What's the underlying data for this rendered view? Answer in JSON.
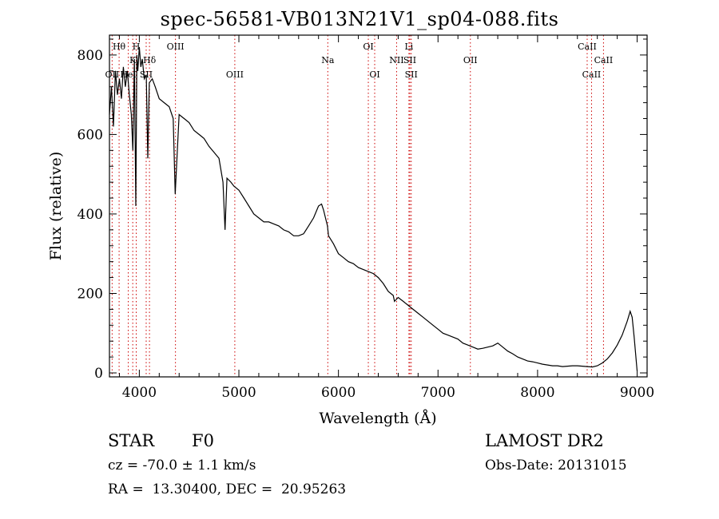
{
  "title": "spec-56581-VB013N21V1_sp04-088.fits",
  "chart_data": {
    "type": "line",
    "title": "spec-56581-VB013N21V1_sp04-088.fits",
    "xlabel": "Wavelength (Å)",
    "ylabel": "Flux (relative)",
    "xlim": [
      3700,
      9100
    ],
    "ylim": [
      -10,
      850
    ],
    "x_ticks": [
      4000,
      5000,
      6000,
      7000,
      8000,
      9000
    ],
    "y_ticks": [
      0,
      200,
      400,
      600,
      800
    ],
    "grid": false,
    "line_color": "#000000",
    "marker_color": "#cc0000",
    "series": [
      {
        "x": [
          3700,
          3720,
          3740,
          3760,
          3780,
          3800,
          3820,
          3840,
          3860,
          3880,
          3900,
          3920,
          3935,
          3950,
          3965,
          3975,
          3985,
          4000,
          4015,
          4030,
          4050,
          4070,
          4085,
          4100,
          4130,
          4160,
          4200,
          4250,
          4300,
          4340,
          4360,
          4400,
          4450,
          4500,
          4550,
          4600,
          4650,
          4700,
          4750,
          4800,
          4840,
          4861,
          4880,
          4920,
          4950,
          5000,
          5050,
          5100,
          5150,
          5200,
          5250,
          5300,
          5350,
          5400,
          5450,
          5500,
          5550,
          5600,
          5650,
          5700,
          5750,
          5800,
          5830,
          5850,
          5870,
          5890,
          5900,
          5950,
          6000,
          6050,
          6100,
          6150,
          6200,
          6250,
          6300,
          6350,
          6400,
          6450,
          6500,
          6550,
          6563,
          6600,
          6650,
          6700,
          6750,
          6800,
          6850,
          6900,
          6950,
          7000,
          7050,
          7100,
          7150,
          7200,
          7250,
          7300,
          7350,
          7400,
          7450,
          7500,
          7550,
          7600,
          7650,
          7700,
          7750,
          7800,
          7850,
          7900,
          7950,
          8000,
          8050,
          8100,
          8150,
          8200,
          8250,
          8300,
          8350,
          8400,
          8450,
          8500,
          8550,
          8600,
          8650,
          8700,
          8750,
          8800,
          8850,
          8900,
          8930,
          8950,
          8970,
          9000
        ],
        "y": [
          650,
          720,
          620,
          760,
          700,
          740,
          690,
          770,
          720,
          760,
          700,
          650,
          560,
          790,
          420,
          800,
          760,
          820,
          770,
          790,
          740,
          750,
          540,
          730,
          740,
          720,
          690,
          680,
          670,
          640,
          450,
          650,
          640,
          630,
          610,
          600,
          590,
          570,
          555,
          540,
          480,
          360,
          490,
          480,
          470,
          460,
          440,
          420,
          400,
          390,
          380,
          380,
          375,
          370,
          360,
          355,
          345,
          345,
          350,
          370,
          390,
          420,
          425,
          410,
          390,
          370,
          345,
          325,
          300,
          290,
          280,
          275,
          265,
          260,
          255,
          250,
          240,
          225,
          205,
          195,
          180,
          190,
          180,
          170,
          160,
          150,
          140,
          130,
          120,
          110,
          100,
          95,
          90,
          85,
          75,
          70,
          65,
          60,
          62,
          65,
          68,
          75,
          65,
          55,
          48,
          40,
          35,
          30,
          28,
          25,
          22,
          20,
          18,
          18,
          16,
          17,
          18,
          18,
          17,
          16,
          15,
          18,
          25,
          35,
          50,
          70,
          95,
          130,
          155,
          140,
          90,
          5
        ]
      }
    ],
    "line_markers": [
      {
        "label": "Hθ",
        "x": 3797,
        "row": 0
      },
      {
        "label": "OII",
        "x": 3727,
        "row": 2
      },
      {
        "label": "H",
        "x": 3969,
        "row": 0
      },
      {
        "label": "K",
        "x": 3934,
        "row": 1
      },
      {
        "label": "HeI",
        "x": 3889,
        "row": 2
      },
      {
        "label": "SII",
        "x": 4069,
        "row": 2
      },
      {
        "label": "Hδ",
        "x": 4102,
        "row": 1
      },
      {
        "label": "OIII",
        "x": 4363,
        "row": 0
      },
      {
        "label": "OIII",
        "x": 4959,
        "row": 2
      },
      {
        "label": "Na",
        "x": 5893,
        "row": 1
      },
      {
        "label": "OI",
        "x": 6300,
        "row": 0
      },
      {
        "label": "OI",
        "x": 6364,
        "row": 2
      },
      {
        "label": "Li",
        "x": 6708,
        "row": 0
      },
      {
        "label": "NII",
        "x": 6584,
        "row": 1
      },
      {
        "label": "SII",
        "x": 6717,
        "row": 1
      },
      {
        "label": "SII",
        "x": 6731,
        "row": 2
      },
      {
        "label": "OII",
        "x": 7325,
        "row": 1
      },
      {
        "label": "CaII",
        "x": 8498,
        "row": 0
      },
      {
        "label": "CaII",
        "x": 8662,
        "row": 1
      },
      {
        "label": "CaII",
        "x": 8542,
        "row": 2
      }
    ]
  },
  "info": {
    "object_type": "STAR",
    "subclass": "F0",
    "survey": "LAMOST DR2",
    "redshift": "cz = -70.0 ± 1.1 km/s",
    "obs_date": "Obs-Date: 20131015",
    "coords": "RA =  13.30400, DEC =  20.95263"
  }
}
